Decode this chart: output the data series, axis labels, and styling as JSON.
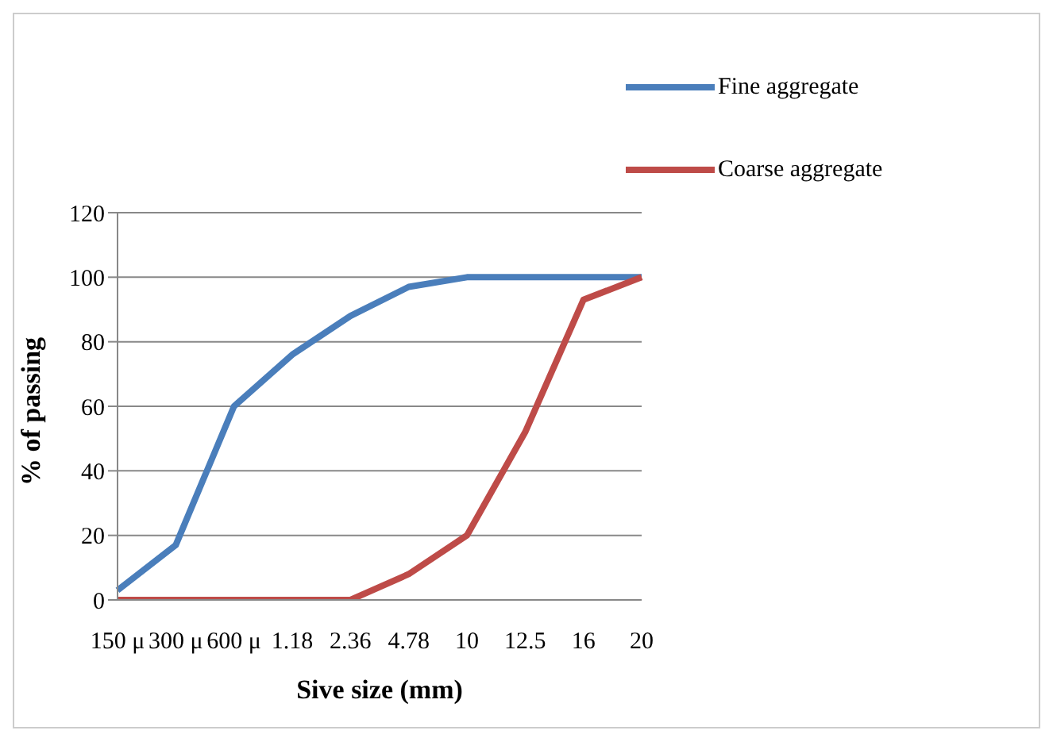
{
  "chart_data": {
    "type": "line",
    "xlabel": "Sive size (mm)",
    "ylabel": "% of passing",
    "categories": [
      "150 μ",
      "300 μ",
      "600 μ",
      "1.18",
      "2.36",
      "4.78",
      "10",
      "12.5",
      "16",
      "20"
    ],
    "series": [
      {
        "name": "Fine aggregate",
        "color": "#4a7ebb",
        "values": [
          3,
          17,
          60,
          76,
          88,
          97,
          100,
          100,
          100,
          100
        ]
      },
      {
        "name": "Coarse aggregate",
        "color": "#be4b48",
        "values": [
          0,
          0,
          0,
          0,
          0,
          8,
          20,
          52,
          93,
          100
        ]
      }
    ],
    "ylim": [
      0,
      120
    ],
    "yticks": [
      0,
      20,
      40,
      60,
      80,
      100,
      120
    ],
    "grid": "y",
    "legend": "top right",
    "marker": "none",
    "line_style": "solid"
  }
}
